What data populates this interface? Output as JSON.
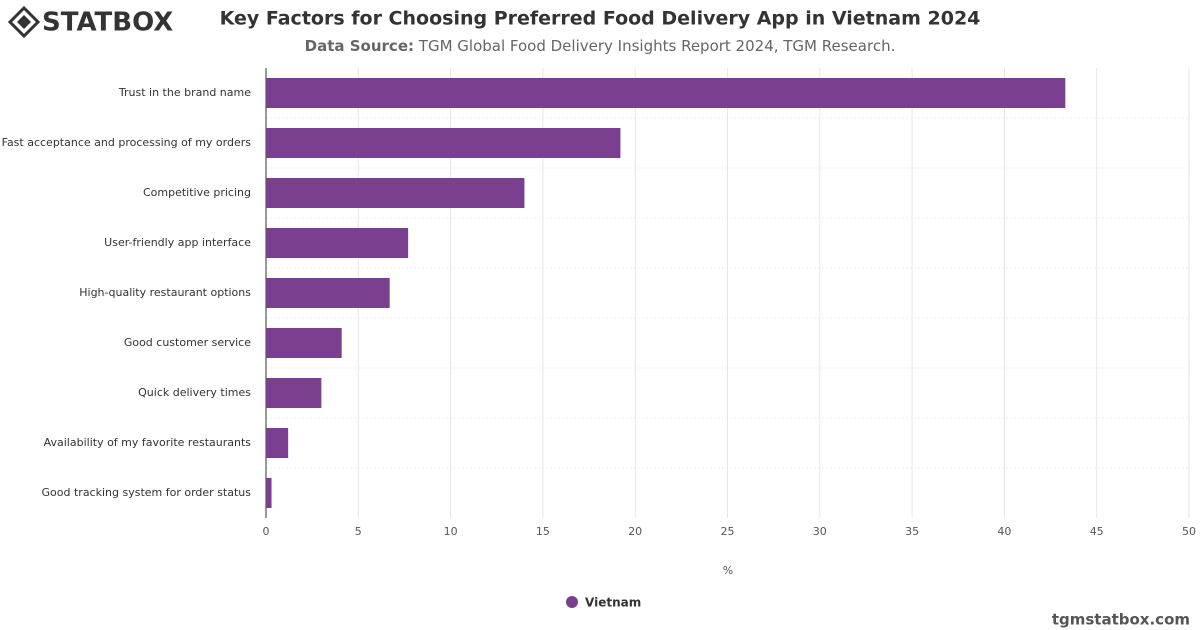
{
  "logo": "STATBOX",
  "footer": "tgmstatbox.com",
  "chart_data": {
    "type": "hbar",
    "title": "Key Factors for Choosing Preferred Food Delivery App in Vietnam 2024",
    "subtitle_label": "Data Source:",
    "subtitle": "TGM Global Food Delivery Insights Report 2024, TGM Research.",
    "x_label": "%",
    "categories": [
      "Trust in the brand name",
      "Fast acceptance and processing of my orders",
      "Competitive pricing",
      "User-friendly app interface",
      "High-quality restaurant options",
      "Good customer service",
      "Quick delivery times",
      "Availability of my favorite restaurants",
      "Good tracking system for order status"
    ],
    "series": [
      {
        "name": "Vietnam",
        "color": "#7b3f8f",
        "values": [
          43.3,
          19.2,
          14.0,
          7.7,
          6.7,
          4.1,
          3.0,
          1.2,
          0.3
        ]
      }
    ],
    "xlim": [
      0,
      50
    ],
    "xticks": [
      0,
      5,
      10,
      15,
      20,
      25,
      30,
      35,
      40,
      45,
      50
    ],
    "grid": true
  }
}
